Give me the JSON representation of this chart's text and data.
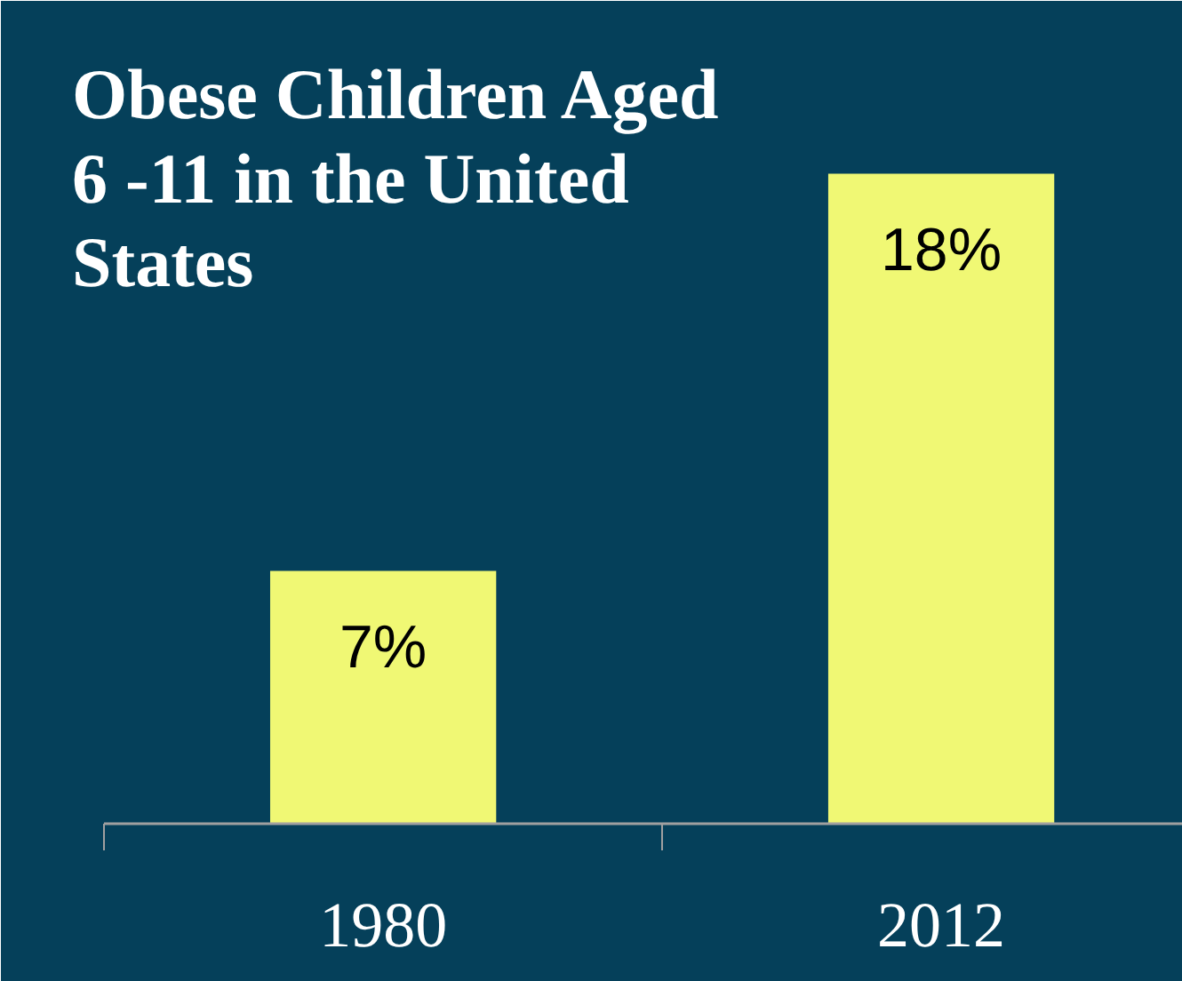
{
  "chart_data": {
    "type": "bar",
    "title": "Obese Children Aged\n 6 -11 in the United\nStates",
    "categories": [
      "1980",
      "2012"
    ],
    "values": [
      7,
      18
    ],
    "value_labels": [
      "7%",
      "18%"
    ],
    "color": "#f0f874",
    "grid": false
  }
}
